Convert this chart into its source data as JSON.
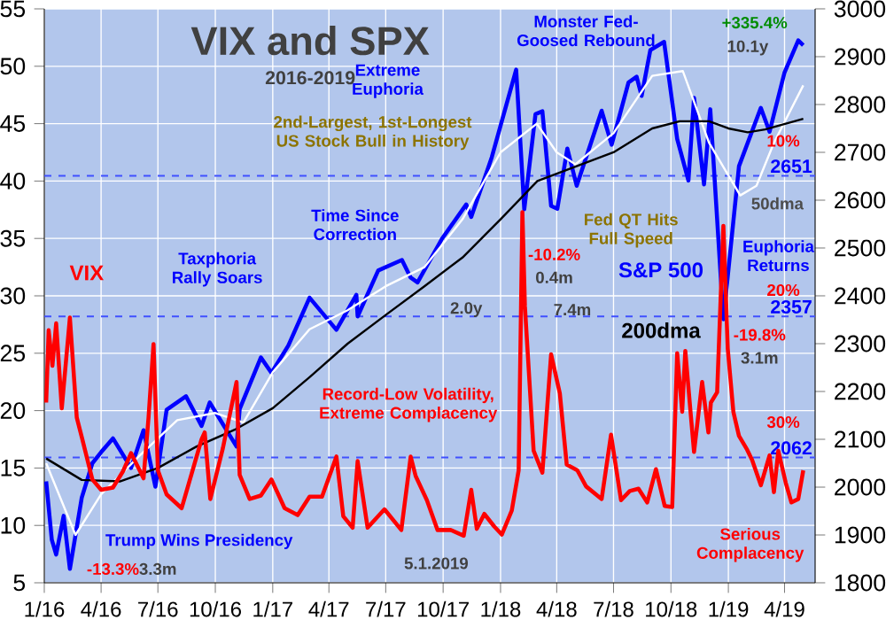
{
  "chart_data": {
    "type": "line",
    "title": "VIX and SPX",
    "subtitle": "2016-2019",
    "xlim": [
      "2016-01-01",
      "2019-05-20"
    ],
    "xticks": [
      {
        "value": "2016-01-01",
        "label": "1/16"
      },
      {
        "value": "2016-04-01",
        "label": "4/16"
      },
      {
        "value": "2016-07-01",
        "label": "7/16"
      },
      {
        "value": "2016-10-01",
        "label": "10/16"
      },
      {
        "value": "2017-01-01",
        "label": "1/17"
      },
      {
        "value": "2017-04-01",
        "label": "4/17"
      },
      {
        "value": "2017-07-01",
        "label": "7/17"
      },
      {
        "value": "2017-10-01",
        "label": "10/17"
      },
      {
        "value": "2018-01-01",
        "label": "1/18"
      },
      {
        "value": "2018-04-01",
        "label": "4/18"
      },
      {
        "value": "2018-07-01",
        "label": "7/18"
      },
      {
        "value": "2018-10-01",
        "label": "10/18"
      },
      {
        "value": "2019-01-01",
        "label": "1/19"
      },
      {
        "value": "2019-04-01",
        "label": "4/19"
      }
    ],
    "ylim": [
      5,
      55
    ],
    "yticks": [
      5,
      10,
      15,
      20,
      25,
      30,
      35,
      40,
      45,
      50,
      55
    ],
    "y2lim": [
      1800,
      3000
    ],
    "y2ticks": [
      1800,
      1900,
      2000,
      2100,
      2200,
      2300,
      2400,
      2500,
      2600,
      2700,
      2800,
      2900,
      3000
    ],
    "grid": true,
    "series": [
      {
        "name": "VIX",
        "color": "#ff0000",
        "x": [
          "2016-01-04",
          "2016-01-08",
          "2016-01-14",
          "2016-01-20",
          "2016-01-29",
          "2016-02-11",
          "2016-02-22",
          "2016-03-01",
          "2016-03-18",
          "2016-04-01",
          "2016-04-20",
          "2016-05-06",
          "2016-05-19",
          "2016-06-08",
          "2016-06-16",
          "2016-06-24",
          "2016-07-01",
          "2016-07-15",
          "2016-08-08",
          "2016-09-09",
          "2016-09-14",
          "2016-09-23",
          "2016-10-13",
          "2016-11-04",
          "2016-11-09",
          "2016-11-25",
          "2016-12-13",
          "2016-12-30",
          "2017-01-20",
          "2017-02-10",
          "2017-03-01",
          "2017-03-21",
          "2017-04-13",
          "2017-04-24",
          "2017-05-09",
          "2017-05-17",
          "2017-06-02",
          "2017-06-29",
          "2017-07-26",
          "2017-08-10",
          "2017-08-18",
          "2017-09-05",
          "2017-09-22",
          "2017-10-13",
          "2017-11-03",
          "2017-11-15",
          "2017-11-24",
          "2017-12-06",
          "2017-12-22",
          "2018-01-03",
          "2018-01-19",
          "2018-01-30",
          "2018-02-05",
          "2018-02-09",
          "2018-02-23",
          "2018-03-09",
          "2018-03-23",
          "2018-04-06",
          "2018-04-17",
          "2018-05-04",
          "2018-05-18",
          "2018-06-12",
          "2018-06-27",
          "2018-07-13",
          "2018-07-27",
          "2018-08-10",
          "2018-08-24",
          "2018-09-07",
          "2018-09-21",
          "2018-10-03",
          "2018-10-11",
          "2018-10-19",
          "2018-10-24",
          "2018-11-02",
          "2018-11-07",
          "2018-11-20",
          "2018-11-30",
          "2018-12-04",
          "2018-12-14",
          "2018-12-24",
          "2018-12-31",
          "2019-01-09",
          "2019-01-18",
          "2019-01-31",
          "2019-02-08",
          "2019-02-22",
          "2019-03-08",
          "2019-03-15",
          "2019-03-22",
          "2019-04-03",
          "2019-04-12",
          "2019-04-23",
          "2019-05-01"
        ],
        "values": [
          20.7,
          27.0,
          23.9,
          27.6,
          20.2,
          28.1,
          19.4,
          17.7,
          14.0,
          13.1,
          13.3,
          14.7,
          16.3,
          14.1,
          19.4,
          25.8,
          14.8,
          12.7,
          11.5,
          17.5,
          18.1,
          12.3,
          16.7,
          22.5,
          14.4,
          12.3,
          12.6,
          14.0,
          11.5,
          10.9,
          12.5,
          12.5,
          16.0,
          10.8,
          9.8,
          15.6,
          9.8,
          11.4,
          9.6,
          16.0,
          14.3,
          12.2,
          9.6,
          9.6,
          9.1,
          13.1,
          9.7,
          11.0,
          9.9,
          9.2,
          11.3,
          14.8,
          37.3,
          29.1,
          16.5,
          14.6,
          24.9,
          21.5,
          15.3,
          14.8,
          13.4,
          12.3,
          17.9,
          12.2,
          13.0,
          13.2,
          12.0,
          14.9,
          11.7,
          11.6,
          25.0,
          19.9,
          25.2,
          19.5,
          16.4,
          22.5,
          18.1,
          20.7,
          21.6,
          36.1,
          25.4,
          19.9,
          17.8,
          16.6,
          15.7,
          13.5,
          16.1,
          12.9,
          16.5,
          13.7,
          12.0,
          12.3,
          14.8
        ]
      },
      {
        "name": "S&P 500",
        "color": "#0000ff",
        "axis": "y2",
        "x": [
          "2016-01-04",
          "2016-01-13",
          "2016-01-20",
          "2016-02-01",
          "2016-02-11",
          "2016-03-01",
          "2016-03-18",
          "2016-04-01",
          "2016-04-20",
          "2016-05-19",
          "2016-06-08",
          "2016-06-27",
          "2016-07-15",
          "2016-08-15",
          "2016-09-09",
          "2016-09-22",
          "2016-10-13",
          "2016-11-04",
          "2016-11-09",
          "2016-12-13",
          "2016-12-30",
          "2017-01-26",
          "2017-03-01",
          "2017-04-13",
          "2017-05-15",
          "2017-05-17",
          "2017-06-19",
          "2017-07-27",
          "2017-08-10",
          "2017-08-21",
          "2017-09-29",
          "2017-11-07",
          "2017-11-15",
          "2017-12-18",
          "2018-01-26",
          "2018-02-08",
          "2018-02-26",
          "2018-03-09",
          "2018-03-23",
          "2018-04-02",
          "2018-04-18",
          "2018-05-03",
          "2018-06-12",
          "2018-06-28",
          "2018-07-25",
          "2018-08-07",
          "2018-08-15",
          "2018-08-29",
          "2018-09-20",
          "2018-10-11",
          "2018-10-29",
          "2018-11-07",
          "2018-11-23",
          "2018-12-03",
          "2018-12-24",
          "2019-01-18",
          "2019-02-22",
          "2019-03-08",
          "2019-04-01",
          "2019-04-23",
          "2019-05-01"
        ],
        "values": [
          2012,
          1890,
          1859,
          1940,
          1829,
          1978,
          2050,
          2073,
          2102,
          2040,
          2119,
          2001,
          2162,
          2190,
          2128,
          2177,
          2132,
          2085,
          2163,
          2271,
          2239,
          2296,
          2396,
          2329,
          2402,
          2357,
          2453,
          2475,
          2438,
          2428,
          2519,
          2591,
          2565,
          2690,
          2873,
          2581,
          2780,
          2786,
          2588,
          2582,
          2708,
          2630,
          2787,
          2716,
          2846,
          2858,
          2818,
          2914,
          2931,
          2728,
          2641,
          2814,
          2633,
          2790,
          2351,
          2671,
          2793,
          2743,
          2867,
          2934,
          2924
        ]
      },
      {
        "name": "50dma",
        "color": "#ffffff",
        "axis": "y2",
        "x": [
          "2016-01-04",
          "2016-02-20",
          "2016-04-01",
          "2016-06-01",
          "2016-08-01",
          "2016-10-01",
          "2016-11-15",
          "2017-01-01",
          "2017-03-01",
          "2017-05-01",
          "2017-07-01",
          "2017-09-01",
          "2017-11-01",
          "2018-01-01",
          "2018-02-28",
          "2018-04-01",
          "2018-05-01",
          "2018-07-01",
          "2018-09-01",
          "2018-10-20",
          "2018-12-01",
          "2019-01-20",
          "2019-02-15",
          "2019-03-15",
          "2019-05-01"
        ],
        "values": [
          2050,
          1900,
          1985,
          2065,
          2140,
          2155,
          2135,
          2240,
          2330,
          2370,
          2420,
          2460,
          2560,
          2700,
          2760,
          2700,
          2675,
          2740,
          2860,
          2870,
          2720,
          2610,
          2630,
          2720,
          2840
        ]
      },
      {
        "name": "200dma",
        "color": "#000000",
        "axis": "y2",
        "x": [
          "2016-01-04",
          "2016-03-01",
          "2016-05-01",
          "2016-07-01",
          "2016-09-01",
          "2016-11-01",
          "2017-01-01",
          "2017-03-01",
          "2017-05-01",
          "2017-07-01",
          "2017-09-01",
          "2017-11-01",
          "2018-01-01",
          "2018-03-01",
          "2018-05-01",
          "2018-07-01",
          "2018-09-01",
          "2018-10-15",
          "2018-12-01",
          "2019-01-01",
          "2019-02-01",
          "2019-03-01",
          "2019-05-01"
        ],
        "values": [
          2060,
          2015,
          2012,
          2040,
          2085,
          2120,
          2165,
          2230,
          2300,
          2360,
          2420,
          2480,
          2560,
          2640,
          2670,
          2700,
          2750,
          2765,
          2765,
          2750,
          2742,
          2748,
          2770
        ]
      }
    ],
    "ref_lines": [
      {
        "axis": "y2",
        "value": 2651,
        "label": "2651",
        "color": "#4050ff",
        "line_style": "dashed"
      },
      {
        "axis": "y2",
        "value": 2357,
        "label": "2357",
        "color": "#4050ff",
        "line_style": "dashed"
      },
      {
        "axis": "y2",
        "value": 2062,
        "label": "2062",
        "color": "#4050ff",
        "line_style": "dashed"
      }
    ],
    "annotations": [
      "Monster Fed-Goosed Rebound",
      "+335.4%",
      "10.1y",
      "Extreme Euphoria",
      "2nd-Largest, 1st-Longest US Stock Bull in History",
      "Time Since Correction",
      "-10.2%",
      "0.4m",
      "Fed QT Hits Full Speed",
      "Taxphoria Rally Soars",
      "2.0y",
      "7.4m",
      "-19.8%",
      "3.1m",
      "Euphoria Returns",
      "10%",
      "20%",
      "30%",
      "Record-Low Volatility, Extreme Complacency",
      "Serious Complacency",
      "Trump Wins Presidency",
      "-13.3%",
      "3.3m",
      "5.1.2019"
    ]
  }
}
